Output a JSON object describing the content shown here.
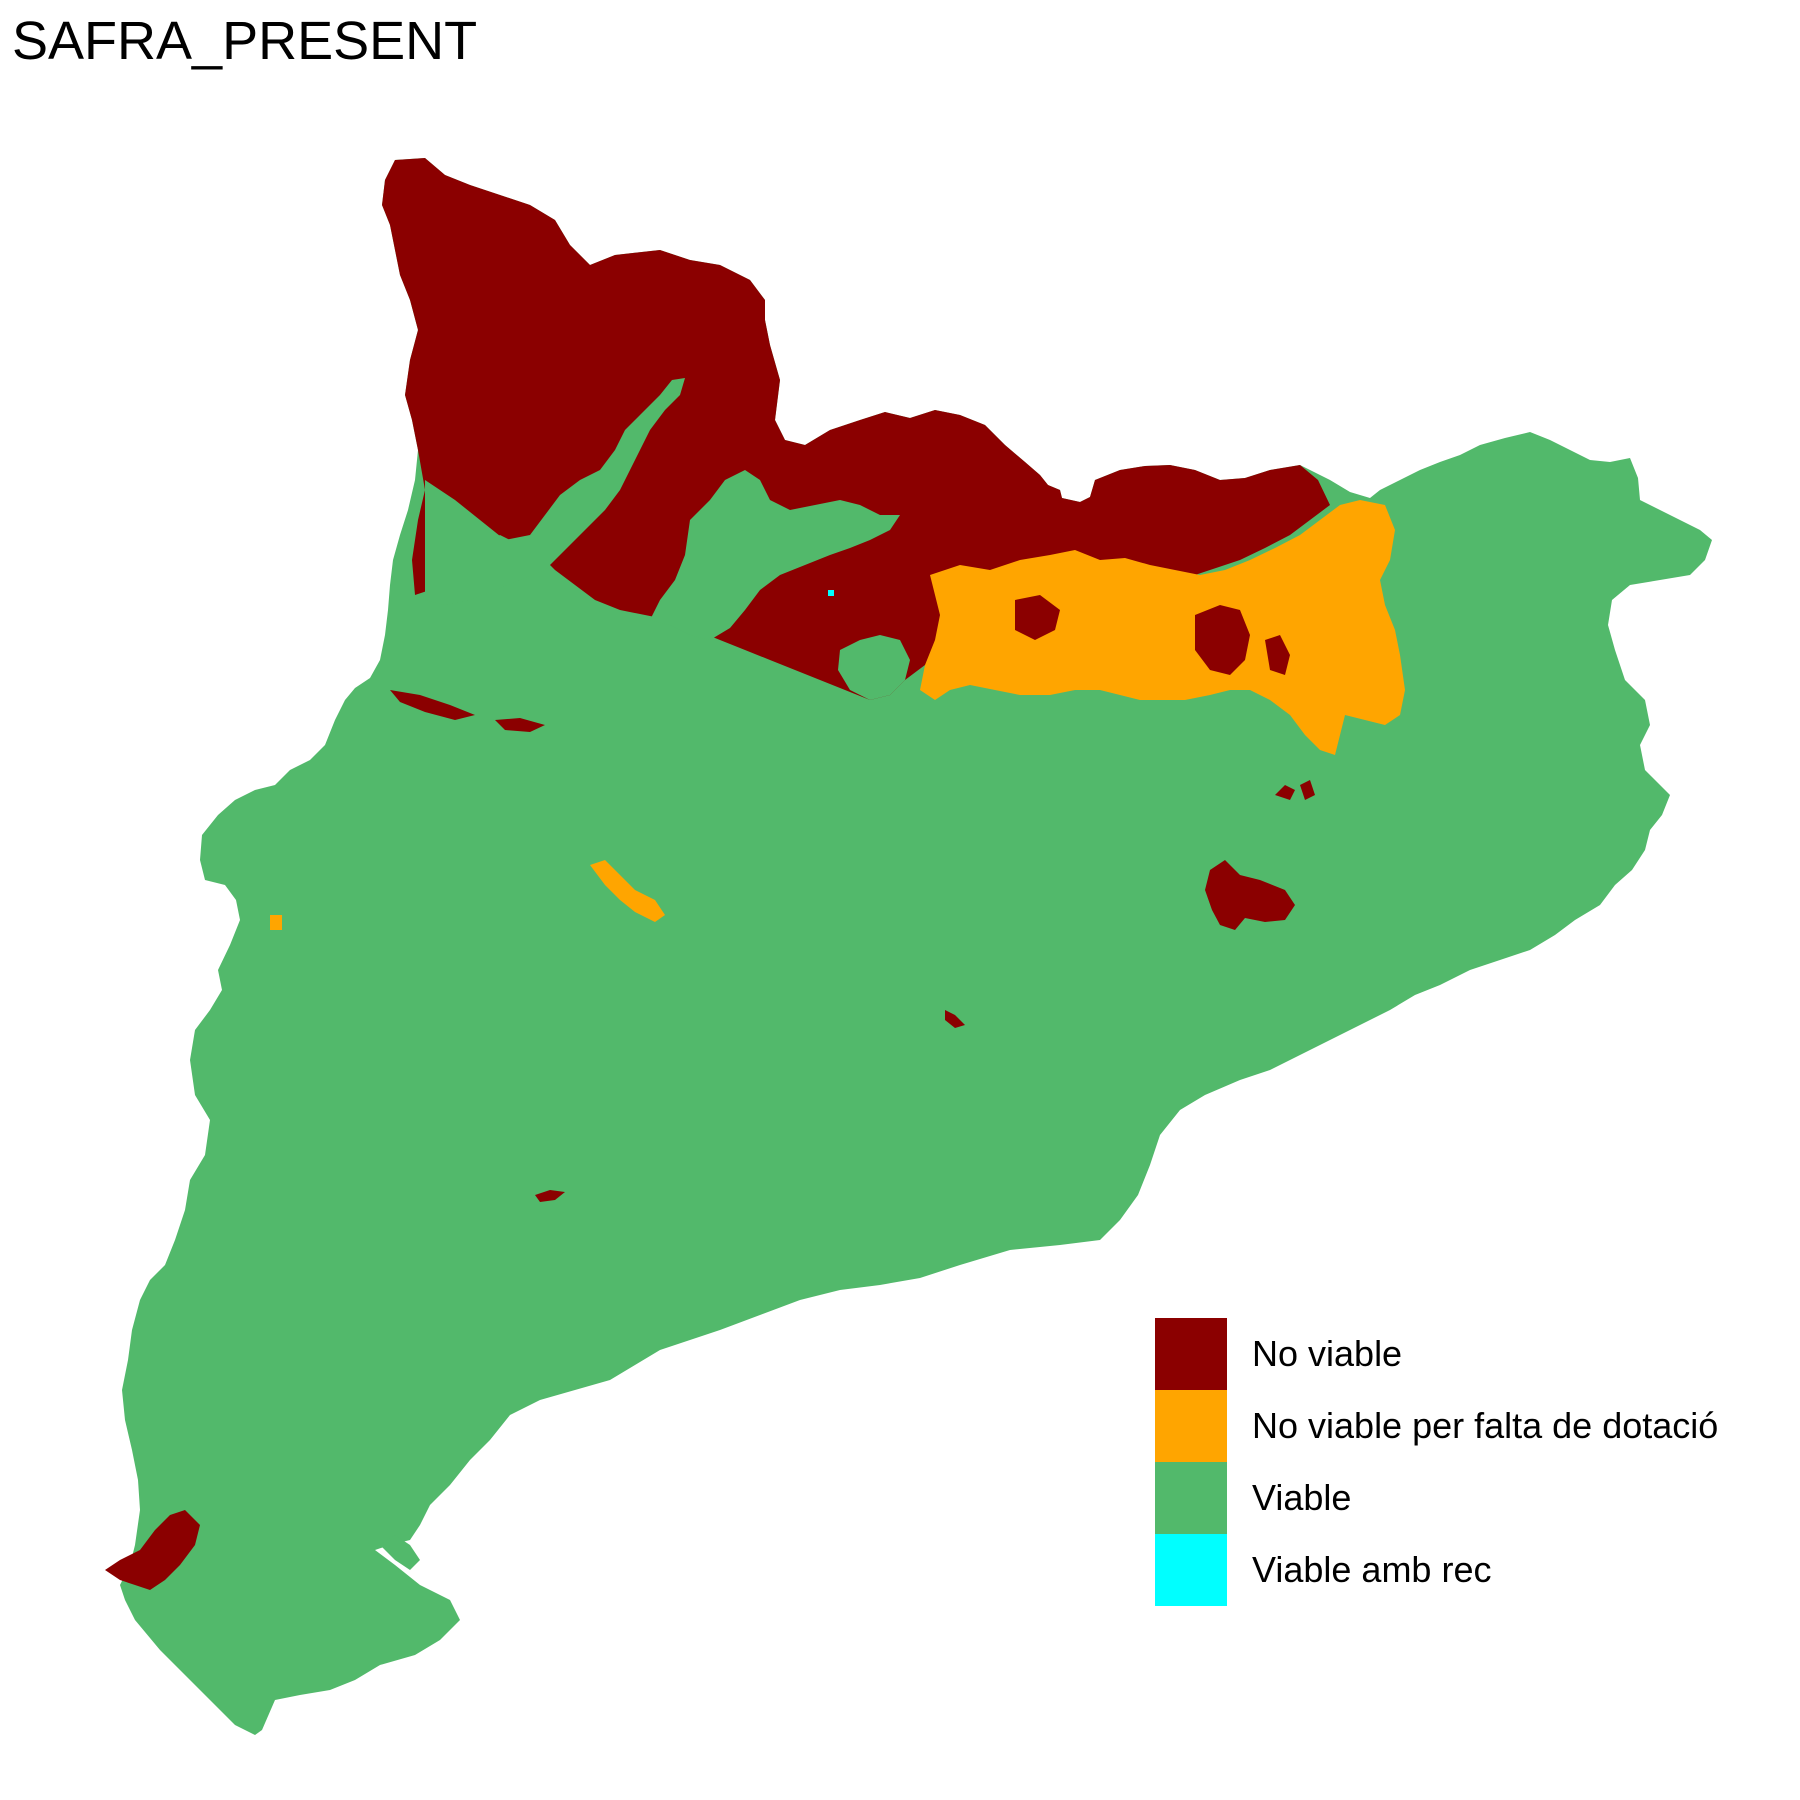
{
  "title": "SAFRA_PRESENT",
  "legend": {
    "items": [
      {
        "label": "No viable",
        "color": "#8B0000"
      },
      {
        "label": "No viable per falta de dotació",
        "color": "#FFA500"
      },
      {
        "label": "Viable",
        "color": "#52B96B"
      },
      {
        "label": "Viable amb rec",
        "color": "#00FFFF"
      }
    ]
  },
  "map": {
    "region": "Catalonia",
    "colors": {
      "no_viable": "#8B0000",
      "no_viable_dotacio": "#FFA500",
      "viable": "#52B96B",
      "viable_rec": "#00FFFF"
    }
  }
}
